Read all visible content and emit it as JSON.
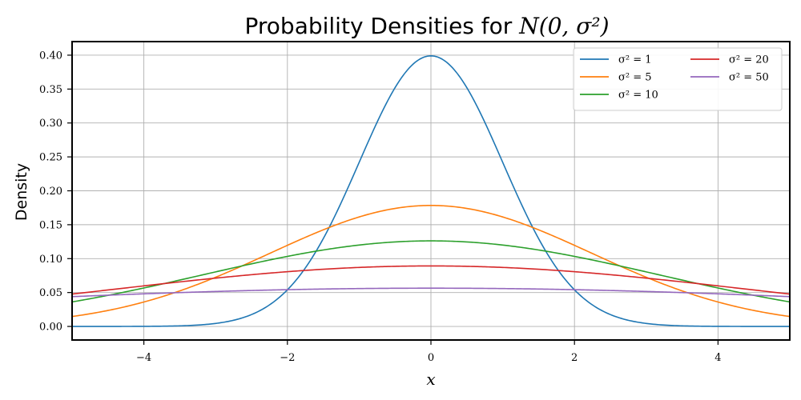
{
  "chart_data": {
    "type": "line",
    "title_prefix": "Probability Densities for ",
    "title_math": "N(0, σ²)",
    "xlabel": "x",
    "ylabel": "Density",
    "xlim": [
      -5,
      5
    ],
    "ylim": [
      -0.02,
      0.42
    ],
    "xticks": [
      -4,
      -2,
      0,
      2,
      4
    ],
    "xtick_labels": [
      "−4",
      "−2",
      "0",
      "2",
      "4"
    ],
    "yticks": [
      0.0,
      0.05,
      0.1,
      0.15,
      0.2,
      0.25,
      0.3,
      0.35,
      0.4
    ],
    "ytick_labels": [
      "0.00",
      "0.05",
      "0.10",
      "0.15",
      "0.20",
      "0.25",
      "0.30",
      "0.35",
      "0.40"
    ],
    "grid": true,
    "legend_position": "top-right",
    "legend_columns": 2,
    "series": [
      {
        "name": "σ² = 1",
        "variance": 1,
        "color": "#1f77b4"
      },
      {
        "name": "σ² = 5",
        "variance": 5,
        "color": "#ff7f0e"
      },
      {
        "name": "σ² = 10",
        "variance": 10,
        "color": "#2ca02c"
      },
      {
        "name": "σ² = 20",
        "variance": 20,
        "color": "#d62728"
      },
      {
        "name": "σ² = 50",
        "variance": 50,
        "color": "#9467bd"
      }
    ]
  }
}
